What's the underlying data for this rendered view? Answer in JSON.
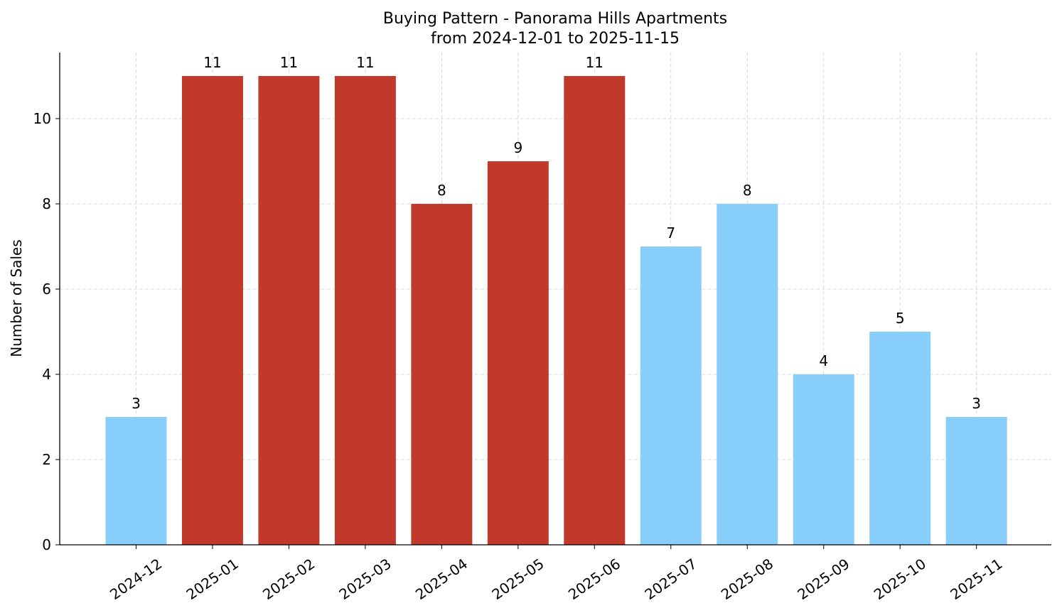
{
  "chart_data": {
    "type": "bar",
    "title": "Buying Pattern - Panorama Hills Apartments",
    "subtitle": "from 2024-12-01 to 2025-11-15",
    "y_label": "Number of Sales",
    "categories": [
      "2024-12",
      "2025-01",
      "2025-02",
      "2025-03",
      "2025-04",
      "2025-05",
      "2025-06",
      "2025-07",
      "2025-08",
      "2025-09",
      "2025-10",
      "2025-11"
    ],
    "values": [
      3,
      11,
      11,
      11,
      8,
      9,
      11,
      7,
      8,
      4,
      5,
      3
    ],
    "colors": [
      "#87cefa",
      "#c0392b",
      "#c0392b",
      "#c0392b",
      "#c0392b",
      "#c0392b",
      "#c0392b",
      "#87cefa",
      "#87cefa",
      "#87cefa",
      "#87cefa",
      "#87cefa"
    ],
    "ylim": [
      0,
      11.55
    ],
    "yticks": [
      0,
      2,
      4,
      6,
      8,
      10
    ],
    "grid": true
  }
}
